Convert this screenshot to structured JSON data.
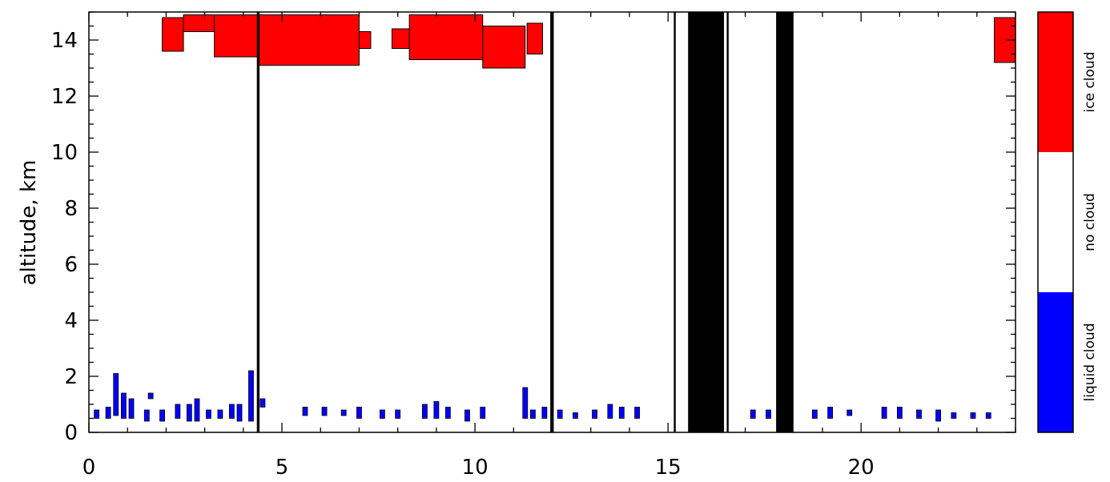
{
  "chart_data": {
    "type": "heatmap",
    "ylabel": "altitude, km",
    "xlim": [
      0,
      24
    ],
    "ylim": [
      0,
      15
    ],
    "x_ticks": [
      0,
      5,
      10,
      15,
      20
    ],
    "y_ticks": [
      0,
      2,
      4,
      6,
      8,
      10,
      12,
      14
    ],
    "colors": {
      "ice": "#ff0000",
      "none": "#ffffff",
      "liquid": "#0000ff",
      "missing": "#000000"
    },
    "legend": {
      "placement": "right",
      "entries": [
        {
          "key": "ice",
          "label": "ice cloud"
        },
        {
          "key": "none",
          "label": "no cloud"
        },
        {
          "key": "liquid",
          "label": "liquid cloud"
        }
      ]
    },
    "missing_data_intervals": [
      [
        4.35,
        4.42
      ],
      [
        11.95,
        12.04
      ],
      [
        15.15,
        15.2
      ],
      [
        15.52,
        16.45
      ],
      [
        16.52,
        16.57
      ],
      [
        17.8,
        18.25
      ]
    ],
    "ice_cloud_regions": [
      {
        "x_start": 1.9,
        "x_end": 2.45,
        "base_km": 13.6,
        "top_km": 14.8
      },
      {
        "x_start": 2.45,
        "x_end": 3.25,
        "base_km": 14.3,
        "top_km": 14.9
      },
      {
        "x_start": 3.25,
        "x_end": 4.4,
        "base_km": 13.4,
        "top_km": 14.9
      },
      {
        "x_start": 4.4,
        "x_end": 7.0,
        "base_km": 13.1,
        "top_km": 14.9
      },
      {
        "x_start": 7.0,
        "x_end": 7.3,
        "base_km": 13.7,
        "top_km": 14.3
      },
      {
        "x_start": 7.85,
        "x_end": 8.3,
        "base_km": 13.7,
        "top_km": 14.4
      },
      {
        "x_start": 8.3,
        "x_end": 10.2,
        "base_km": 13.3,
        "top_km": 14.9
      },
      {
        "x_start": 10.2,
        "x_end": 11.3,
        "base_km": 13.0,
        "top_km": 14.5
      },
      {
        "x_start": 11.35,
        "x_end": 11.75,
        "base_km": 13.5,
        "top_km": 14.6
      },
      {
        "x_start": 23.45,
        "x_end": 24.0,
        "base_km": 13.2,
        "top_km": 14.8
      }
    ],
    "liquid_cloud_patches": [
      {
        "x": 0.2,
        "base_km": 0.5,
        "top_km": 0.8
      },
      {
        "x": 0.5,
        "base_km": 0.5,
        "top_km": 0.9
      },
      {
        "x": 0.7,
        "base_km": 0.6,
        "top_km": 2.1
      },
      {
        "x": 0.9,
        "base_km": 0.5,
        "top_km": 1.4
      },
      {
        "x": 1.1,
        "base_km": 0.5,
        "top_km": 1.2
      },
      {
        "x": 1.5,
        "base_km": 0.4,
        "top_km": 0.8
      },
      {
        "x": 1.6,
        "base_km": 1.2,
        "top_km": 1.4
      },
      {
        "x": 1.9,
        "base_km": 0.4,
        "top_km": 0.8
      },
      {
        "x": 2.3,
        "base_km": 0.5,
        "top_km": 1.0
      },
      {
        "x": 2.6,
        "base_km": 0.4,
        "top_km": 1.0
      },
      {
        "x": 2.8,
        "base_km": 0.4,
        "top_km": 1.2
      },
      {
        "x": 3.1,
        "base_km": 0.5,
        "top_km": 0.8
      },
      {
        "x": 3.4,
        "base_km": 0.5,
        "top_km": 0.8
      },
      {
        "x": 3.7,
        "base_km": 0.5,
        "top_km": 1.0
      },
      {
        "x": 3.9,
        "base_km": 0.4,
        "top_km": 1.0
      },
      {
        "x": 4.2,
        "base_km": 0.4,
        "top_km": 2.2
      },
      {
        "x": 4.5,
        "base_km": 0.9,
        "top_km": 1.2
      },
      {
        "x": 5.6,
        "base_km": 0.6,
        "top_km": 0.9
      },
      {
        "x": 6.1,
        "base_km": 0.6,
        "top_km": 0.9
      },
      {
        "x": 6.6,
        "base_km": 0.6,
        "top_km": 0.8
      },
      {
        "x": 7.0,
        "base_km": 0.5,
        "top_km": 0.9
      },
      {
        "x": 7.6,
        "base_km": 0.5,
        "top_km": 0.8
      },
      {
        "x": 8.0,
        "base_km": 0.5,
        "top_km": 0.8
      },
      {
        "x": 8.7,
        "base_km": 0.5,
        "top_km": 1.0
      },
      {
        "x": 9.0,
        "base_km": 0.5,
        "top_km": 1.1
      },
      {
        "x": 9.3,
        "base_km": 0.5,
        "top_km": 0.9
      },
      {
        "x": 9.8,
        "base_km": 0.4,
        "top_km": 0.8
      },
      {
        "x": 10.2,
        "base_km": 0.5,
        "top_km": 0.9
      },
      {
        "x": 11.3,
        "base_km": 0.5,
        "top_km": 1.6
      },
      {
        "x": 11.5,
        "base_km": 0.5,
        "top_km": 0.8
      },
      {
        "x": 11.8,
        "base_km": 0.5,
        "top_km": 0.9
      },
      {
        "x": 12.2,
        "base_km": 0.5,
        "top_km": 0.8
      },
      {
        "x": 12.6,
        "base_km": 0.5,
        "top_km": 0.7
      },
      {
        "x": 13.1,
        "base_km": 0.5,
        "top_km": 0.8
      },
      {
        "x": 13.5,
        "base_km": 0.5,
        "top_km": 1.0
      },
      {
        "x": 13.8,
        "base_km": 0.5,
        "top_km": 0.9
      },
      {
        "x": 14.2,
        "base_km": 0.5,
        "top_km": 0.9
      },
      {
        "x": 17.2,
        "base_km": 0.5,
        "top_km": 0.8
      },
      {
        "x": 17.6,
        "base_km": 0.5,
        "top_km": 0.8
      },
      {
        "x": 18.8,
        "base_km": 0.5,
        "top_km": 0.8
      },
      {
        "x": 19.2,
        "base_km": 0.5,
        "top_km": 0.9
      },
      {
        "x": 19.7,
        "base_km": 0.6,
        "top_km": 0.8
      },
      {
        "x": 20.6,
        "base_km": 0.5,
        "top_km": 0.9
      },
      {
        "x": 21.0,
        "base_km": 0.5,
        "top_km": 0.9
      },
      {
        "x": 21.5,
        "base_km": 0.5,
        "top_km": 0.8
      },
      {
        "x": 22.0,
        "base_km": 0.4,
        "top_km": 0.8
      },
      {
        "x": 22.4,
        "base_km": 0.5,
        "top_km": 0.7
      },
      {
        "x": 22.9,
        "base_km": 0.5,
        "top_km": 0.7
      },
      {
        "x": 23.3,
        "base_km": 0.5,
        "top_km": 0.7
      }
    ]
  }
}
